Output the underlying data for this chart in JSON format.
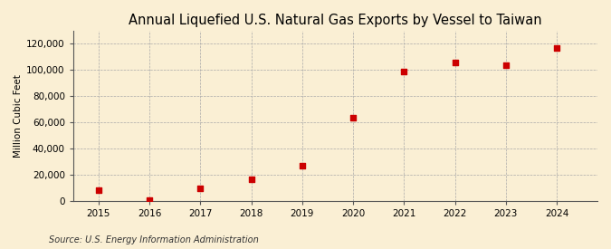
{
  "title": "Annual Liquefied U.S. Natural Gas Exports by Vessel to Taiwan",
  "ylabel": "Million Cubic Feet",
  "source": "Source: U.S. Energy Information Administration",
  "years": [
    2015,
    2016,
    2017,
    2018,
    2019,
    2020,
    2021,
    2022,
    2023,
    2024
  ],
  "values": [
    8000,
    500,
    9500,
    16500,
    27000,
    63500,
    98500,
    106000,
    104000,
    116500
  ],
  "xlim": [
    2014.5,
    2024.8
  ],
  "ylim": [
    0,
    130000
  ],
  "yticks": [
    0,
    20000,
    40000,
    60000,
    80000,
    100000,
    120000
  ],
  "xticks": [
    2015,
    2016,
    2017,
    2018,
    2019,
    2020,
    2021,
    2022,
    2023,
    2024
  ],
  "marker_color": "#cc0000",
  "marker": "s",
  "marker_size": 4,
  "bg_color": "#faefd4",
  "grid_color": "#aaaaaa",
  "title_fontsize": 10.5,
  "label_fontsize": 7.5,
  "tick_fontsize": 7.5,
  "source_fontsize": 7
}
